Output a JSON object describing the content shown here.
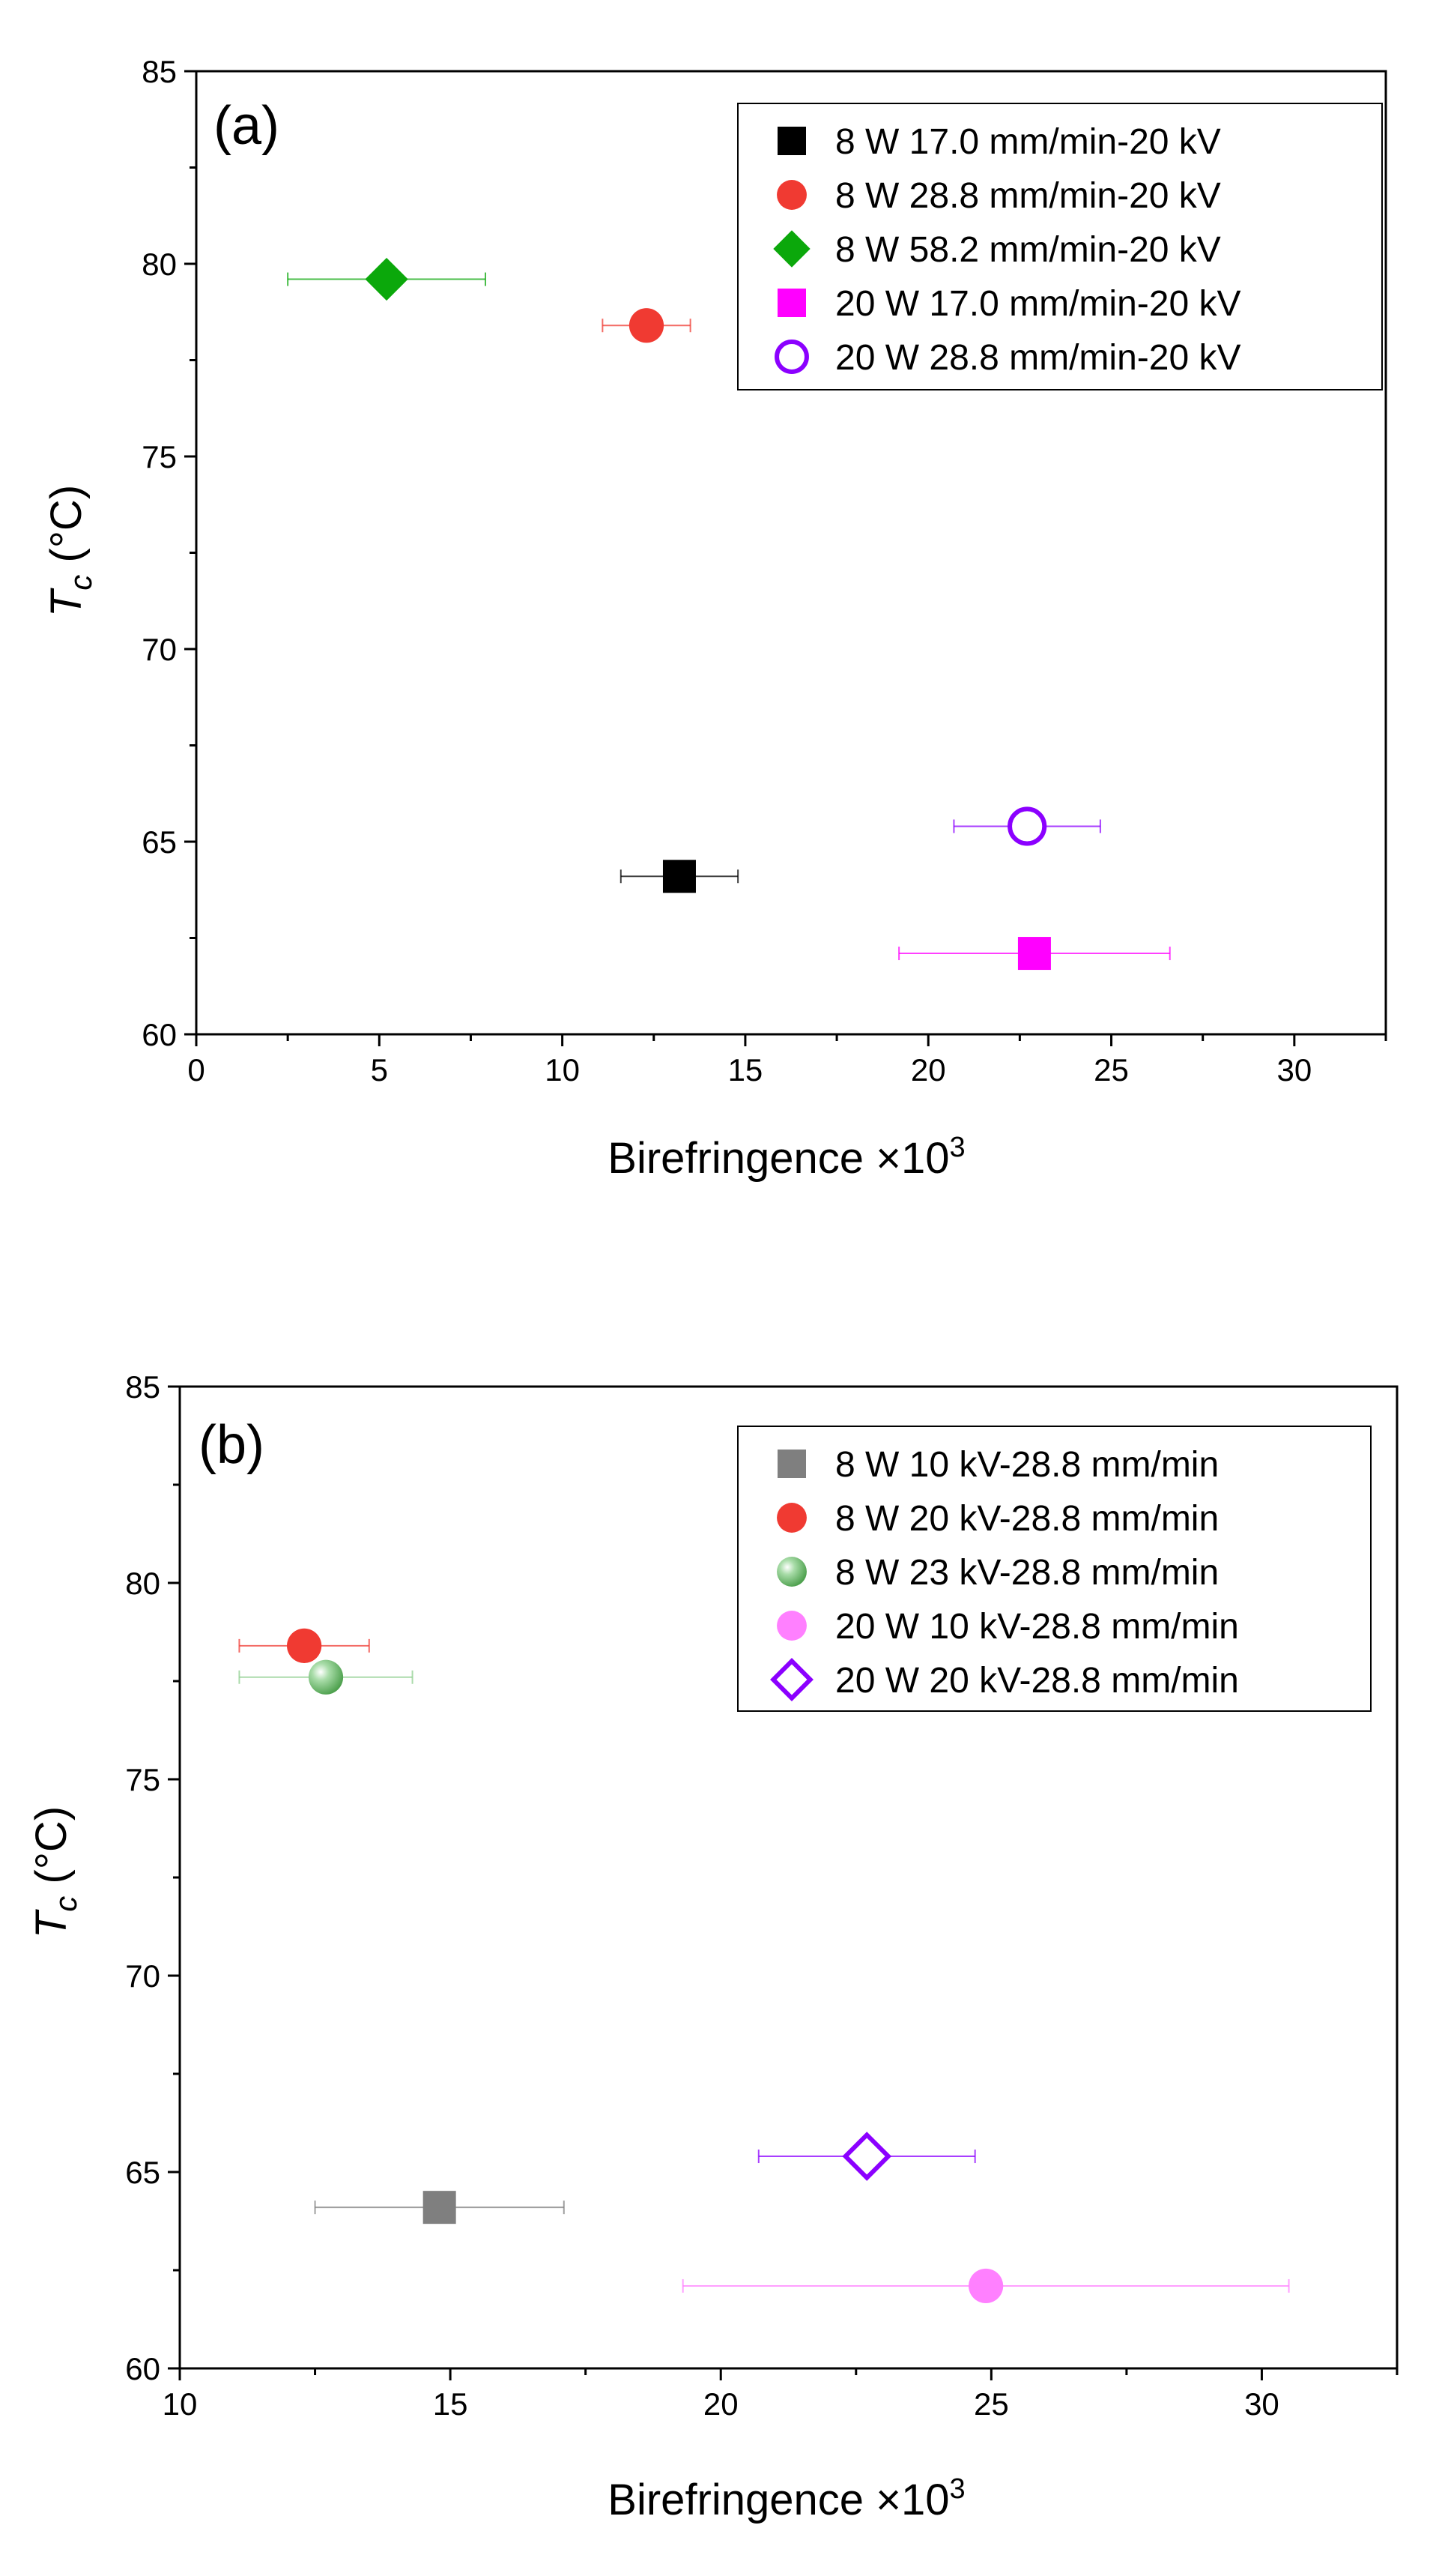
{
  "chart_data": [
    {
      "type": "scatter",
      "panel_label": "(a)",
      "xlabel": "Birefringence ×10",
      "xlabel_sup": "3",
      "ylabel_main": "T",
      "ylabel_sub": "c",
      "ylabel_unit": " (°C)",
      "xlim": [
        0,
        32.5
      ],
      "ylim": [
        60,
        85
      ],
      "xticks": [
        0,
        5,
        10,
        15,
        20,
        25,
        30
      ],
      "yticks": [
        60,
        65,
        70,
        75,
        80,
        85
      ],
      "legend_position": "top-right",
      "series": [
        {
          "name": "8 W 17.0 mm/min-20 kV",
          "marker": "square",
          "color": "#000000",
          "fill": "solid",
          "x": 13.2,
          "y": 64.1,
          "xerr": 1.6
        },
        {
          "name": "8 W 28.8 mm/min-20 kV",
          "marker": "circle",
          "color": "#f03a32",
          "fill": "solid",
          "x": 12.3,
          "y": 78.4,
          "xerr": 1.2
        },
        {
          "name": "8 W 58.2 mm/min-20 kV",
          "marker": "diamond",
          "color": "#0ba80b",
          "fill": "solid",
          "x": 5.2,
          "y": 79.6,
          "xerr": 2.7
        },
        {
          "name": "20 W 17.0 mm/min-20 kV",
          "marker": "square",
          "color": "#ff00ff",
          "fill": "solid",
          "x": 22.9,
          "y": 62.1,
          "xerr": 3.7
        },
        {
          "name": "20 W 28.8 mm/min-20 kV",
          "marker": "circle",
          "color": "#8b00ff",
          "fill": "open",
          "x": 22.7,
          "y": 65.4,
          "xerr": 2.0
        }
      ]
    },
    {
      "type": "scatter",
      "panel_label": "(b)",
      "xlabel": "Birefringence ×10",
      "xlabel_sup": "3",
      "ylabel_main": "T",
      "ylabel_sub": "c",
      "ylabel_unit": " (°C)",
      "xlim": [
        10,
        32.5
      ],
      "ylim": [
        60,
        85
      ],
      "xticks": [
        10,
        15,
        20,
        25,
        30
      ],
      "yticks": [
        60,
        65,
        70,
        75,
        80,
        85
      ],
      "legend_position": "top-right",
      "series": [
        {
          "name": "8 W 10 kV-28.8 mm/min",
          "marker": "square",
          "color": "#7f7f7f",
          "fill": "solid",
          "x": 14.8,
          "y": 64.1,
          "xerr": 2.3
        },
        {
          "name": "8 W 20 kV-28.8 mm/min",
          "marker": "circle",
          "color": "#f03a32",
          "fill": "solid",
          "x": 12.3,
          "y": 78.4,
          "xerr": 1.2
        },
        {
          "name": "8 W 23 kV-28.8 mm/min",
          "marker": "sphere",
          "color": "#6cc26c",
          "fill": "gradient",
          "x": 12.7,
          "y": 77.6,
          "xerr": 1.6
        },
        {
          "name": "20 W 10 kV-28.8 mm/min",
          "marker": "circle",
          "color": "#ff80ff",
          "fill": "solid",
          "x": 24.9,
          "y": 62.1,
          "xerr": 5.6
        },
        {
          "name": "20 W 20 kV-28.8 mm/min",
          "marker": "diamond",
          "color": "#8b00ff",
          "fill": "open",
          "x": 22.7,
          "y": 65.4,
          "xerr": 2.0
        }
      ]
    }
  ]
}
